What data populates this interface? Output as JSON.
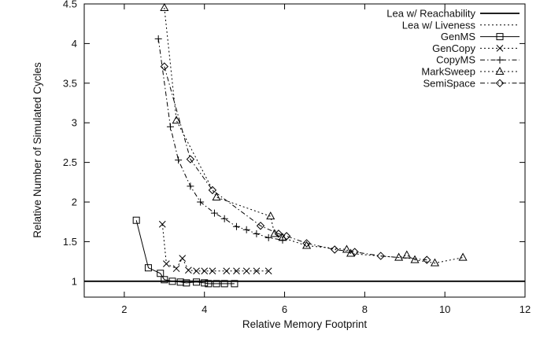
{
  "chart_data": {
    "type": "line",
    "title": "",
    "xlabel": "Relative Memory Footprint",
    "ylabel": "Relative Number of Simulated Cycles",
    "xlim": [
      1,
      12
    ],
    "ylim": [
      0.8,
      4.5
    ],
    "xticks": [
      2,
      4,
      6,
      8,
      10,
      12
    ],
    "yticks": [
      1,
      1.5,
      2,
      2.5,
      3,
      3.5,
      4,
      4.5
    ],
    "xtick_labels": [
      "2",
      "4",
      "6",
      "8",
      "10",
      "12"
    ],
    "ytick_labels": [
      "1",
      "1.5",
      "2",
      "2.5",
      "3",
      "3.5",
      "4",
      "4.5"
    ],
    "legend_position": "top-right",
    "series": [
      {
        "name": "Lea w/ Reachability",
        "line": "solid-thick",
        "marker": "none",
        "x": [
          1,
          12
        ],
        "y": [
          1.0,
          1.0
        ]
      },
      {
        "name": "Lea w/ Liveness",
        "line": "dotted",
        "marker": "none",
        "x": [
          1,
          12
        ],
        "y": [
          1.0,
          1.0
        ]
      },
      {
        "name": "GenMS",
        "line": "solid",
        "marker": "square",
        "x": [
          2.3,
          2.6,
          2.9,
          3.0,
          3.2,
          3.4,
          3.55,
          3.8,
          4.0,
          4.1,
          4.3,
          4.5,
          4.75
        ],
        "y": [
          1.77,
          1.17,
          1.1,
          1.02,
          1.0,
          0.99,
          0.98,
          0.99,
          0.98,
          0.97,
          0.97,
          0.97,
          0.97
        ]
      },
      {
        "name": "GenCopy",
        "line": "dotted",
        "marker": "x",
        "x": [
          2.95,
          3.05,
          3.3,
          3.45,
          3.6,
          3.8,
          4.0,
          4.2,
          4.55,
          4.8,
          5.05,
          5.3,
          5.6
        ],
        "y": [
          1.72,
          1.22,
          1.16,
          1.29,
          1.14,
          1.13,
          1.13,
          1.13,
          1.13,
          1.13,
          1.13,
          1.13,
          1.13
        ]
      },
      {
        "name": "CopyMS",
        "line": "dash-dot",
        "marker": "plus",
        "x": [
          2.85,
          3.15,
          3.35,
          3.65,
          3.9,
          4.25,
          4.5,
          4.8,
          5.05,
          5.3,
          5.6,
          5.95
        ],
        "y": [
          4.06,
          2.95,
          2.53,
          2.2,
          2.0,
          1.86,
          1.79,
          1.69,
          1.65,
          1.6,
          1.55,
          1.52
        ]
      },
      {
        "name": "MarkSweep",
        "line": "dotted",
        "marker": "triangle",
        "x": [
          3.0,
          3.3,
          4.3,
          5.65,
          5.75,
          5.95,
          6.55,
          7.55,
          7.65,
          8.85,
          9.05,
          9.25,
          9.75,
          10.45
        ],
        "y": [
          4.45,
          3.03,
          2.06,
          1.82,
          1.6,
          1.55,
          1.45,
          1.4,
          1.35,
          1.3,
          1.33,
          1.27,
          1.23,
          1.3
        ]
      },
      {
        "name": "SemiSpace",
        "line": "dash-dot",
        "marker": "diamond",
        "x": [
          3.0,
          3.65,
          4.2,
          5.4,
          5.85,
          6.05,
          6.55,
          7.25,
          7.75,
          8.4,
          9.55
        ],
        "y": [
          3.71,
          2.54,
          2.15,
          1.7,
          1.6,
          1.57,
          1.48,
          1.4,
          1.37,
          1.32,
          1.27
        ]
      }
    ]
  }
}
